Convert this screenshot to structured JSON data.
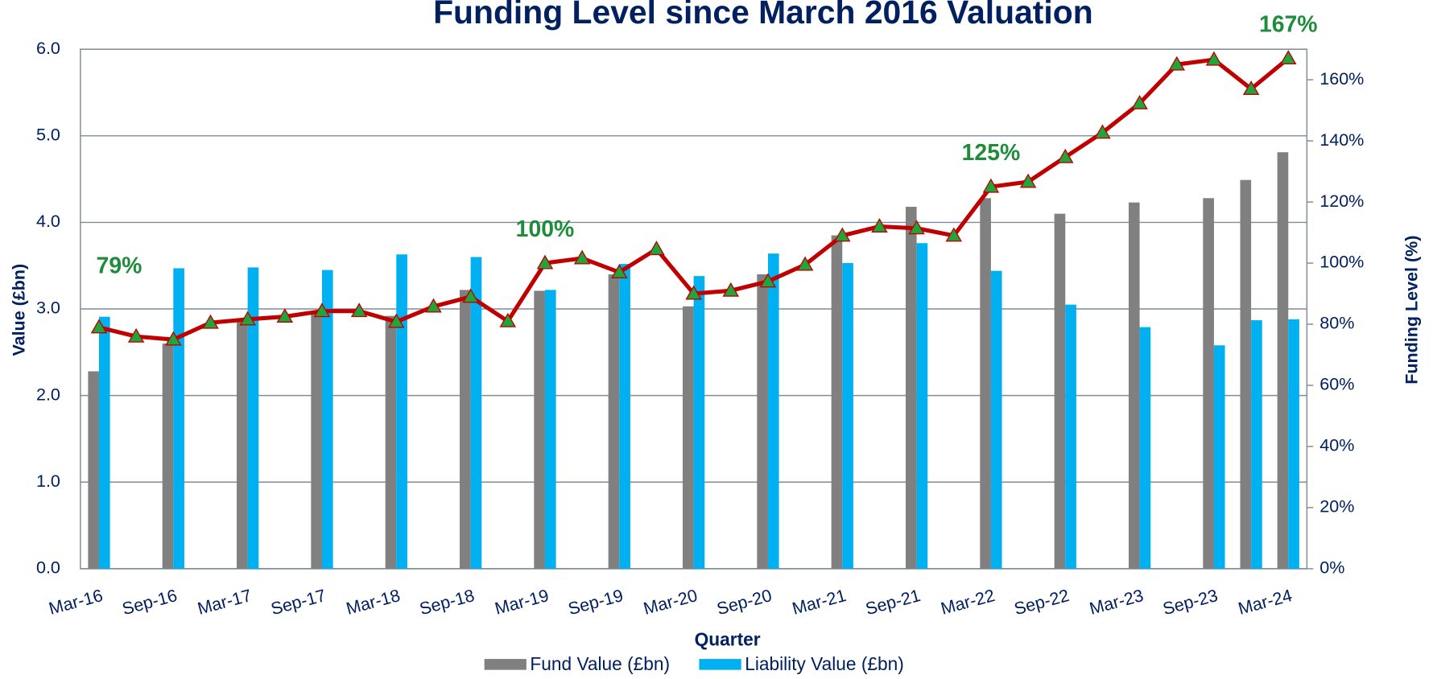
{
  "chart_data": {
    "type": "bar",
    "title": "Funding Level since March 2016 Valuation",
    "x_label": "Quarter",
    "y_label": "Value (£bn)",
    "y2_label": "Funding Level (%)",
    "categories": [
      "Mar-16",
      null,
      "Sep-16",
      null,
      "Mar-17",
      null,
      "Sep-17",
      null,
      "Mar-18",
      null,
      "Sep-18",
      null,
      "Mar-19",
      null,
      "Sep-19",
      null,
      "Mar-20",
      null,
      "Sep-20",
      null,
      "Mar-21",
      null,
      "Sep-21",
      null,
      "Mar-22",
      null,
      "Sep-22",
      null,
      "Mar-23",
      null,
      "Sep-23",
      null,
      "Mar-24"
    ],
    "series": [
      {
        "name": "Fund Value (£bn)",
        "color": "#808080",
        "type": "bar",
        "values": [
          2.28,
          null,
          2.6,
          null,
          2.85,
          null,
          2.95,
          null,
          2.92,
          null,
          3.22,
          null,
          3.21,
          null,
          3.4,
          null,
          3.03,
          null,
          3.4,
          null,
          3.85,
          null,
          4.18,
          null,
          4.28,
          null,
          4.1,
          null,
          4.23,
          null,
          4.28,
          4.49,
          4.81
        ]
      },
      {
        "name": "Liability Value (£bn)",
        "color": "#00b0f0",
        "type": "bar",
        "values": [
          2.91,
          null,
          3.47,
          null,
          3.48,
          null,
          3.45,
          null,
          3.63,
          null,
          3.6,
          null,
          3.22,
          null,
          3.52,
          null,
          3.38,
          null,
          3.64,
          null,
          3.53,
          null,
          3.76,
          null,
          3.44,
          null,
          3.05,
          null,
          2.79,
          null,
          2.58,
          2.87,
          2.88
        ]
      },
      {
        "color": "#c00000",
        "marker_color": "#1fa53a",
        "type": "line",
        "axis": "y2",
        "values": [
          79,
          76,
          75,
          80.5,
          81.6,
          82.5,
          84.3,
          84.3,
          80.8,
          85.8,
          89,
          81,
          100,
          101.6,
          97,
          104.6,
          90,
          91,
          94,
          99.5,
          109,
          112,
          111.4,
          109,
          125,
          126.6,
          134.7,
          142.7,
          152.3,
          165,
          166.6,
          157,
          167
        ],
        "value_labels": [
          "79%",
          null,
          null,
          null,
          null,
          null,
          null,
          null,
          null,
          null,
          null,
          null,
          "100%",
          null,
          null,
          null,
          null,
          null,
          null,
          null,
          null,
          null,
          null,
          null,
          "125%",
          null,
          null,
          null,
          null,
          null,
          null,
          null,
          "167%"
        ]
      }
    ],
    "ylim": [
      0,
      6
    ],
    "yticks": [
      {
        "value": 0,
        "label": "0.0"
      },
      {
        "value": 1,
        "label": "1.0"
      },
      {
        "value": 2,
        "label": "2.0"
      },
      {
        "value": 3,
        "label": "3.0"
      },
      {
        "value": 4,
        "label": "4.0"
      },
      {
        "value": 5,
        "label": "5.0"
      },
      {
        "value": 6,
        "label": "6.0"
      }
    ],
    "y2lim": [
      0,
      170
    ],
    "y2ticks": [
      {
        "value": 0,
        "label": "0%"
      },
      {
        "value": 20,
        "label": "20%"
      },
      {
        "value": 40,
        "label": "40%"
      },
      {
        "value": 60,
        "label": "60%"
      },
      {
        "value": 80,
        "label": "80%"
      },
      {
        "value": 100,
        "label": "100%"
      },
      {
        "value": 120,
        "label": "120%"
      },
      {
        "value": 140,
        "label": "140%"
      },
      {
        "value": 160,
        "label": "160%"
      }
    ],
    "grid": true,
    "legend": "bottom"
  }
}
